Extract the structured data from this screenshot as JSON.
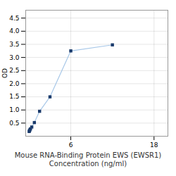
{
  "chart_data": {
    "type": "line",
    "x": [
      0.0,
      0.047,
      0.094,
      0.188,
      0.375,
      0.75,
      1.5,
      3,
      6,
      12
    ],
    "values": [
      0.18,
      0.21,
      0.24,
      0.28,
      0.35,
      0.52,
      0.95,
      1.5,
      3.25,
      3.48
    ],
    "xlabel": "Mouse RNA-Binding Protein EWS (EWSR1)\nConcentration (ng/ml)",
    "ylabel": "OD",
    "xlim": [
      -0.5,
      20
    ],
    "xticks": [
      6,
      18
    ],
    "ylim": [
      0.0,
      4.8
    ],
    "yticks": [
      0.5,
      {
        "value": 1,
        "label": "1.0"
      },
      1.5,
      {
        "value": 2,
        "label": "2.0"
      },
      2.5,
      {
        "value": 3,
        "label": "3.0"
      },
      3.5,
      {
        "value": 4,
        "label": "4.0"
      },
      4.5
    ],
    "color": "#a8c8e8",
    "colors": [
      "#1a3a6b",
      "#1a3a6b",
      "#1a3a6b",
      "#1a3a6b",
      "#1a3a6b",
      "#1a3a6b",
      "#1a3a6b",
      "#1a3a6b",
      "#1a3a6b",
      "#1a3a6b"
    ],
    "marker": "square",
    "grid": true
  }
}
